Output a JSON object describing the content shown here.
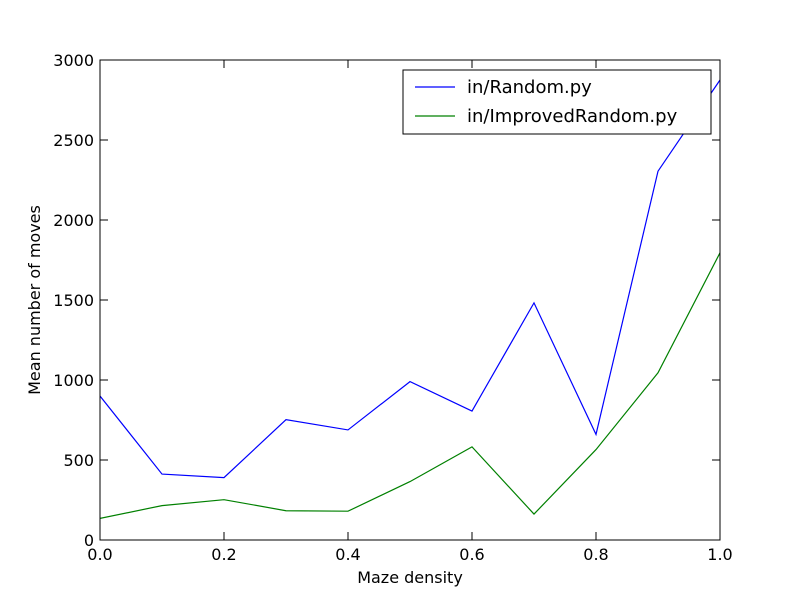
{
  "chart_data": {
    "type": "line",
    "title": "",
    "xlabel": "Maze density",
    "ylabel": "Mean number of moves",
    "xlim": [
      0.0,
      1.0
    ],
    "ylim": [
      0,
      3000
    ],
    "x_ticks": [
      "0.0",
      "0.2",
      "0.4",
      "0.6",
      "0.8",
      "1.0"
    ],
    "y_ticks": [
      "0",
      "500",
      "1000",
      "1500",
      "2000",
      "2500",
      "3000"
    ],
    "grid": false,
    "legend_position": "top-right",
    "x": [
      0.0,
      0.1,
      0.2,
      0.3,
      0.4,
      0.5,
      0.6,
      0.7,
      0.8,
      0.9,
      1.0
    ],
    "series": [
      {
        "name": "in/Random.py",
        "color": "#0000ff",
        "values": [
          900,
          412,
          390,
          752,
          688,
          990,
          806,
          1482,
          660,
          2305,
          2875
        ]
      },
      {
        "name": "in/ImprovedRandom.py",
        "color": "#008000",
        "values": [
          135,
          215,
          252,
          183,
          180,
          365,
          582,
          162,
          565,
          1045,
          1795
        ]
      }
    ]
  }
}
